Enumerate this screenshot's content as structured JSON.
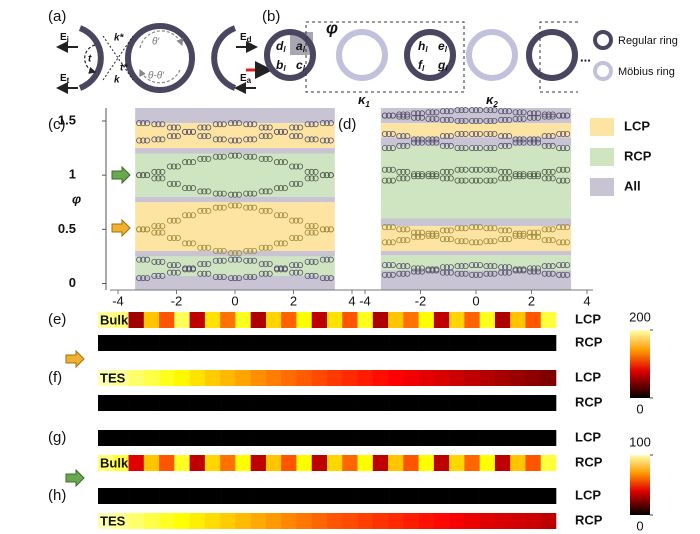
{
  "panel_a": {
    "label": "(a)",
    "fields": [
      {
        "base": "E",
        "sub": "i"
      },
      {
        "base": "E",
        "sub": "t"
      },
      {
        "base": "E",
        "sub": "d"
      },
      {
        "base": "E",
        "sub": "a"
      }
    ],
    "couplings": [
      "t",
      "t*",
      "k*",
      "k"
    ],
    "phases": [
      "θ′",
      "θ-θ′"
    ]
  },
  "panel_b": {
    "label": "(b)",
    "phase": "φ",
    "sites": [
      {
        "base": "d",
        "sub": "l"
      },
      {
        "base": "a",
        "sub": "l"
      },
      {
        "base": "b",
        "sub": "l"
      },
      {
        "base": "c",
        "sub": "l"
      },
      {
        "base": "h",
        "sub": "l"
      },
      {
        "base": "e",
        "sub": "l"
      },
      {
        "base": "f",
        "sub": "l"
      },
      {
        "base": "g",
        "sub": "l"
      }
    ],
    "couplings": [
      {
        "base": "κ",
        "sub": "1"
      },
      {
        "base": "κ",
        "sub": "2"
      }
    ],
    "legend": [
      "Regular ring",
      "Möbius ring"
    ],
    "ellipsis": "..."
  },
  "region_legend": [
    {
      "name": "LCP",
      "color": "#fde4a3"
    },
    {
      "name": "RCP",
      "color": "#cfe5c2"
    },
    {
      "name": "All",
      "color": "#c8c4d4"
    }
  ],
  "chart_data": [
    {
      "type": "scatter",
      "label": "(c)",
      "ylabel": "φ",
      "xlim": [
        -4,
        4
      ],
      "xticks": [
        -4,
        -2,
        0,
        2,
        4
      ],
      "ylim": [
        -0.06,
        1.62
      ],
      "yticks": [
        0,
        0.5,
        1,
        1.5
      ],
      "x": [
        -3.14,
        -2.62,
        -2.09,
        -1.57,
        -1.05,
        -0.52,
        0,
        0.52,
        1.05,
        1.57,
        2.09,
        2.62,
        3.14
      ],
      "regions": [
        {
          "kind": "All",
          "from": 1.48,
          "to": 1.62
        },
        {
          "kind": "LCP",
          "from": 1.25,
          "to": 1.48
        },
        {
          "kind": "All",
          "from": 1.2,
          "to": 1.25
        },
        {
          "kind": "RCP",
          "from": 0.8,
          "to": 1.2
        },
        {
          "kind": "All",
          "from": 0.75,
          "to": 0.8
        },
        {
          "kind": "LCP",
          "from": 0.3,
          "to": 0.75
        },
        {
          "kind": "All",
          "from": 0.25,
          "to": 0.3
        },
        {
          "kind": "RCP",
          "from": 0.07,
          "to": 0.25
        },
        {
          "kind": "All",
          "from": -0.06,
          "to": 0.07
        }
      ],
      "series": [
        {
          "color": "#55516a",
          "values": [
            1.32,
            1.33,
            1.36,
            1.4,
            1.44,
            1.47,
            1.48,
            1.47,
            1.44,
            1.4,
            1.36,
            1.33,
            1.32
          ]
        },
        {
          "color": "#55516a",
          "values": [
            1.48,
            1.47,
            1.44,
            1.4,
            1.36,
            1.33,
            1.32,
            1.33,
            1.36,
            1.4,
            1.44,
            1.47,
            1.48
          ]
        },
        {
          "color": "#4f5a48",
          "values": [
            1.0,
            1.03,
            1.08,
            1.12,
            1.15,
            1.17,
            1.18,
            1.17,
            1.15,
            1.12,
            1.08,
            1.03,
            1.0
          ]
        },
        {
          "color": "#4f5a48",
          "values": [
            1.0,
            0.97,
            0.92,
            0.88,
            0.85,
            0.83,
            0.82,
            0.83,
            0.85,
            0.88,
            0.92,
            0.97,
            1.0
          ]
        },
        {
          "color": "#9c8a3a",
          "values": [
            0.5,
            0.53,
            0.58,
            0.63,
            0.67,
            0.7,
            0.72,
            0.7,
            0.67,
            0.63,
            0.58,
            0.53,
            0.5
          ]
        },
        {
          "color": "#9c8a3a",
          "values": [
            0.5,
            0.47,
            0.42,
            0.37,
            0.33,
            0.3,
            0.28,
            0.3,
            0.33,
            0.37,
            0.42,
            0.47,
            0.5
          ]
        },
        {
          "color": "#55516a",
          "values": [
            0.05,
            0.07,
            0.1,
            0.14,
            0.18,
            0.21,
            0.22,
            0.21,
            0.18,
            0.14,
            0.1,
            0.07,
            0.05
          ]
        },
        {
          "color": "#55516a",
          "values": [
            0.22,
            0.2,
            0.17,
            0.13,
            0.09,
            0.06,
            0.05,
            0.06,
            0.09,
            0.13,
            0.17,
            0.2,
            0.22
          ]
        }
      ]
    },
    {
      "type": "scatter",
      "label": "(d)",
      "xlim": [
        -4,
        4
      ],
      "xticks": [
        -4,
        -2,
        0,
        2,
        4
      ],
      "ylim": [
        -0.06,
        1.62
      ],
      "x": [
        -3.14,
        -2.62,
        -2.09,
        -1.57,
        -1.05,
        -0.52,
        0,
        0.52,
        1.05,
        1.57,
        2.09,
        2.62,
        3.14
      ],
      "regions": [
        {
          "kind": "All",
          "from": 1.48,
          "to": 1.62
        },
        {
          "kind": "LCP",
          "from": 1.35,
          "to": 1.48
        },
        {
          "kind": "All",
          "from": 1.27,
          "to": 1.35
        },
        {
          "kind": "RCP",
          "from": 0.6,
          "to": 1.27
        },
        {
          "kind": "All",
          "from": 0.53,
          "to": 0.6
        },
        {
          "kind": "LCP",
          "from": 0.3,
          "to": 0.53
        },
        {
          "kind": "All",
          "from": 0.26,
          "to": 0.3
        },
        {
          "kind": "RCP",
          "from": 0.12,
          "to": 0.26
        },
        {
          "kind": "All",
          "from": -0.06,
          "to": 0.12
        }
      ],
      "series": [
        {
          "color": "#55516a",
          "values": [
            1.55,
            1.56,
            1.57,
            1.58,
            1.59,
            1.6,
            1.6,
            1.6,
            1.59,
            1.58,
            1.57,
            1.56,
            1.55
          ]
        },
        {
          "color": "#55516a",
          "values": [
            1.55,
            1.54,
            1.53,
            1.52,
            1.51,
            1.5,
            1.5,
            1.5,
            1.51,
            1.52,
            1.53,
            1.54,
            1.55
          ]
        },
        {
          "color": "#55516a",
          "values": [
            1.25,
            1.27,
            1.3,
            1.33,
            1.36,
            1.38,
            1.38,
            1.38,
            1.36,
            1.33,
            1.3,
            1.27,
            1.25
          ]
        },
        {
          "color": "#55516a",
          "values": [
            1.38,
            1.36,
            1.33,
            1.3,
            1.27,
            1.25,
            1.25,
            1.25,
            1.27,
            1.3,
            1.33,
            1.36,
            1.38
          ]
        },
        {
          "color": "#4f5a48",
          "values": [
            0.95,
            0.97,
            0.99,
            1.01,
            1.03,
            1.05,
            1.05,
            1.05,
            1.03,
            1.01,
            0.99,
            0.97,
            0.95
          ]
        },
        {
          "color": "#4f5a48",
          "values": [
            1.05,
            1.03,
            1.01,
            0.99,
            0.97,
            0.95,
            0.95,
            0.95,
            0.97,
            0.99,
            1.01,
            1.03,
            1.05
          ]
        },
        {
          "color": "#9c8a3a",
          "values": [
            0.38,
            0.4,
            0.43,
            0.46,
            0.49,
            0.51,
            0.52,
            0.51,
            0.49,
            0.46,
            0.43,
            0.4,
            0.38
          ]
        },
        {
          "color": "#9c8a3a",
          "values": [
            0.52,
            0.5,
            0.47,
            0.44,
            0.41,
            0.39,
            0.38,
            0.39,
            0.41,
            0.44,
            0.47,
            0.5,
            0.52
          ]
        },
        {
          "color": "#55516a",
          "values": [
            0.08,
            0.09,
            0.11,
            0.13,
            0.15,
            0.16,
            0.17,
            0.16,
            0.15,
            0.13,
            0.11,
            0.09,
            0.08
          ]
        },
        {
          "color": "#55516a",
          "values": [
            0.17,
            0.16,
            0.14,
            0.12,
            0.1,
            0.09,
            0.08,
            0.09,
            0.1,
            0.12,
            0.14,
            0.16,
            0.17
          ]
        }
      ]
    },
    {
      "type": "heatmap",
      "groups": [
        {
          "clim": [
            0,
            200
          ],
          "cticks": [
            200,
            0
          ],
          "panels": [
            {
              "label": "(e)",
              "rows": [
                {
                  "overlay": "Bulk",
                  "channel": "LCP",
                  "values": [
                    195,
                    190,
                    50,
                    150,
                    110,
                    185,
                    60,
                    160,
                    120,
                    175,
                    55,
                    155,
                    115,
                    170,
                    60,
                    160,
                    110,
                    175,
                    55,
                    150,
                    120,
                    170,
                    60,
                    155,
                    115,
                    175,
                    55,
                    150,
                    110,
                    180
                  ]
                },
                {
                  "channel": "RCP",
                  "values": [
                    0,
                    0,
                    0,
                    0,
                    0,
                    0,
                    0,
                    0,
                    0,
                    0,
                    0,
                    0,
                    0,
                    0,
                    0,
                    0,
                    0,
                    0,
                    0,
                    0,
                    0,
                    0,
                    0,
                    0,
                    0,
                    0,
                    0,
                    0,
                    0,
                    0
                  ]
                }
              ]
            },
            {
              "label": "(f)",
              "rows": [
                {
                  "overlay": "TES",
                  "channel": "LCP",
                  "values": [
                    200,
                    195,
                    188,
                    182,
                    175,
                    168,
                    160,
                    152,
                    145,
                    138,
                    130,
                    124,
                    118,
                    112,
                    106,
                    100,
                    95,
                    90,
                    85,
                    80,
                    76,
                    72,
                    68,
                    64,
                    60,
                    56,
                    52,
                    48,
                    44,
                    40
                  ]
                },
                {
                  "channel": "RCP",
                  "values": [
                    0,
                    0,
                    0,
                    0,
                    0,
                    0,
                    0,
                    0,
                    0,
                    0,
                    0,
                    0,
                    0,
                    0,
                    0,
                    0,
                    0,
                    0,
                    0,
                    0,
                    0,
                    0,
                    0,
                    0,
                    0,
                    0,
                    0,
                    0,
                    0,
                    0
                  ]
                }
              ]
            }
          ]
        },
        {
          "clim": [
            0,
            100
          ],
          "cticks": [
            100,
            0
          ],
          "panels": [
            {
              "label": "(g)",
              "rows": [
                {
                  "channel": "LCP",
                  "values": [
                    0,
                    0,
                    0,
                    0,
                    0,
                    0,
                    0,
                    0,
                    0,
                    0,
                    0,
                    0,
                    0,
                    0,
                    0,
                    0,
                    0,
                    0,
                    0,
                    0,
                    0,
                    0,
                    0,
                    0,
                    0,
                    0,
                    0,
                    0,
                    0,
                    0
                  ]
                },
                {
                  "overlay": "Bulk",
                  "channel": "RCP",
                  "values": [
                    95,
                    90,
                    35,
                    75,
                    55,
                    88,
                    30,
                    78,
                    60,
                    85,
                    30,
                    75,
                    55,
                    85,
                    30,
                    78,
                    58,
                    85,
                    30,
                    75,
                    55,
                    85,
                    30,
                    78,
                    58,
                    85,
                    30,
                    75,
                    55,
                    90
                  ]
                }
              ]
            },
            {
              "label": "(h)",
              "rows": [
                {
                  "channel": "LCP",
                  "values": [
                    0,
                    0,
                    0,
                    0,
                    0,
                    0,
                    0,
                    0,
                    0,
                    0,
                    0,
                    0,
                    0,
                    0,
                    0,
                    0,
                    0,
                    0,
                    0,
                    0,
                    0,
                    0,
                    0,
                    0,
                    0,
                    0,
                    0,
                    0,
                    0,
                    0
                  ]
                },
                {
                  "overlay": "TES",
                  "channel": "RCP",
                  "values": [
                    100,
                    97,
                    94,
                    91,
                    88,
                    85,
                    82,
                    79,
                    76,
                    73,
                    70,
                    67,
                    64,
                    61,
                    58,
                    55,
                    53,
                    51,
                    49,
                    47,
                    45,
                    43,
                    41,
                    39,
                    37,
                    35,
                    34,
                    33,
                    32,
                    30
                  ]
                }
              ]
            }
          ]
        }
      ]
    }
  ]
}
